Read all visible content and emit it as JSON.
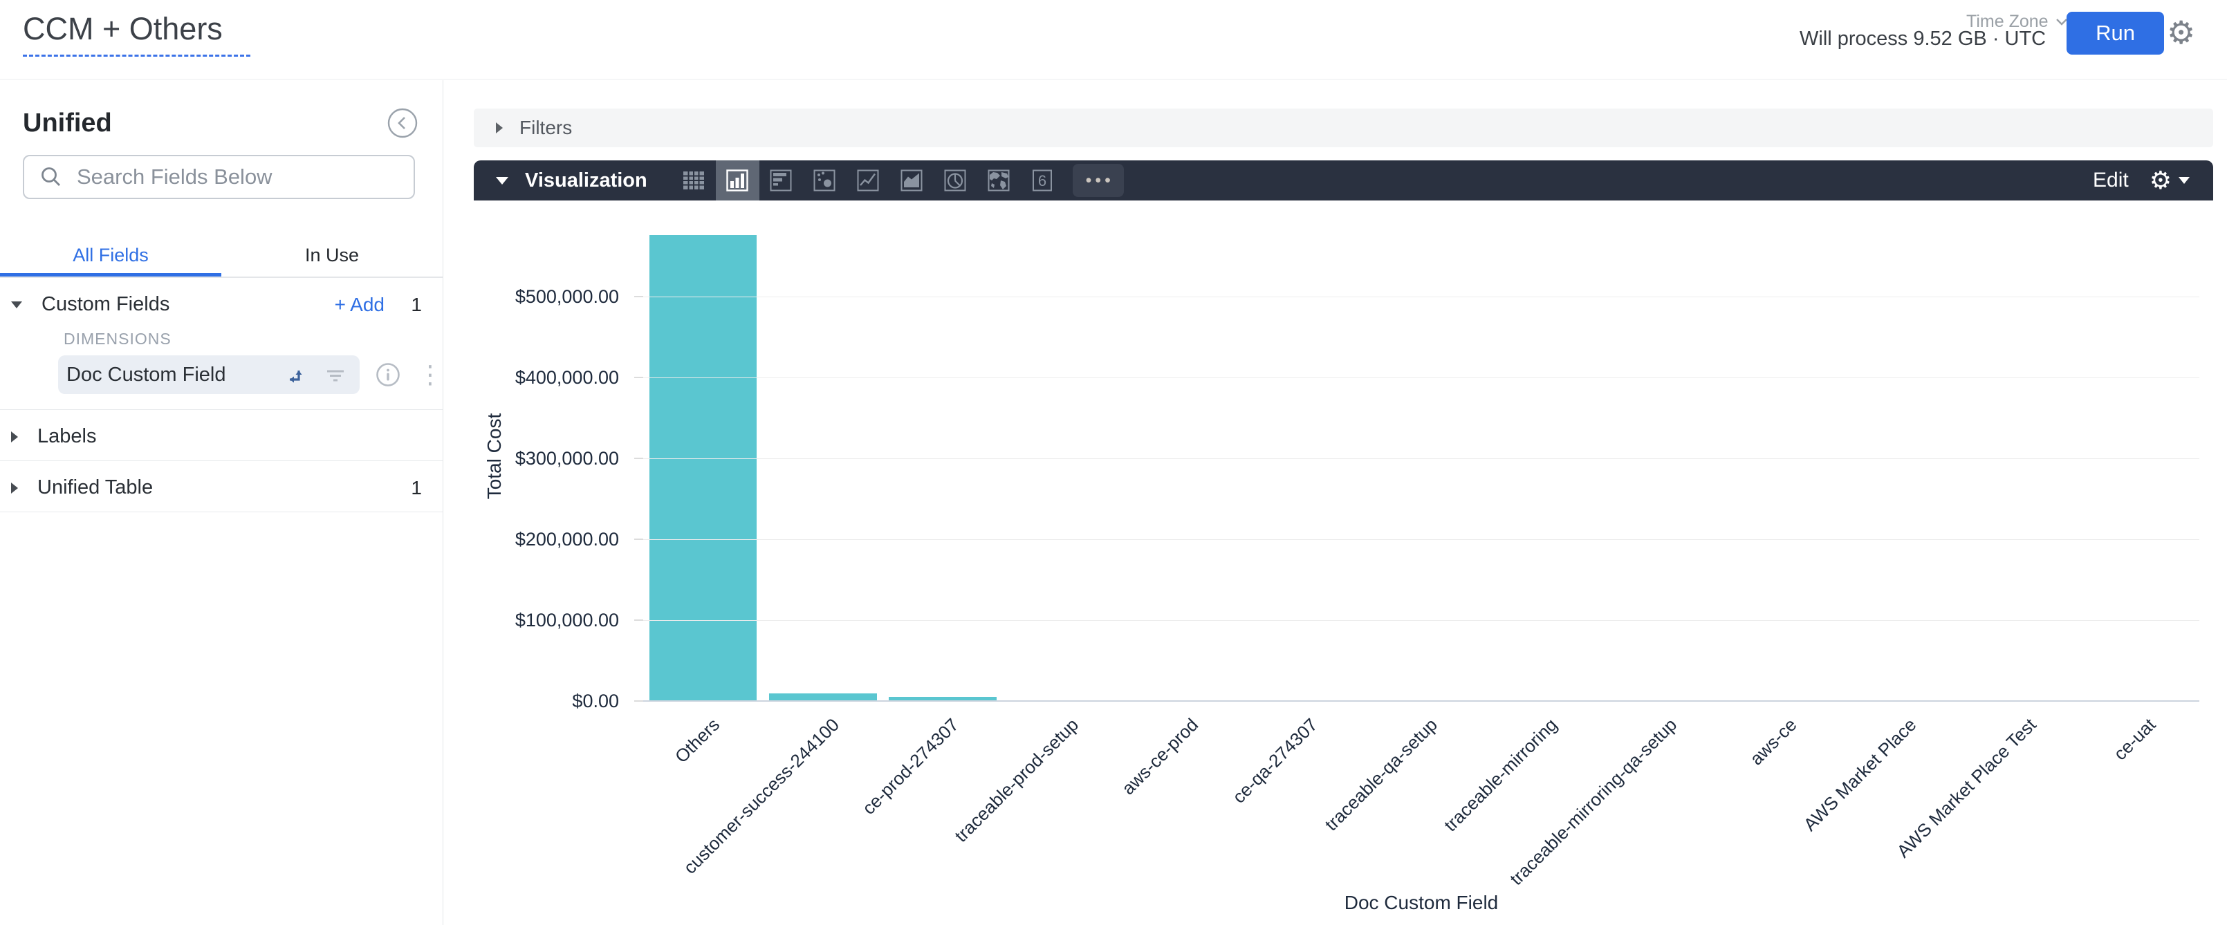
{
  "header": {
    "title": "CCM + Others",
    "process_info": "Will process 9.52 GB · UTC",
    "time_zone_label": "Time Zone",
    "run_label": "Run"
  },
  "sidebar": {
    "panel_title": "Unified",
    "search_placeholder": "Search Fields Below",
    "tabs": [
      {
        "label": "All Fields",
        "active": true
      },
      {
        "label": "In Use",
        "active": false
      }
    ],
    "custom_fields": {
      "label": "Custom Fields",
      "add_label": "+ Add",
      "count": "1",
      "group_label": "DIMENSIONS",
      "fields": [
        {
          "name": "Doc Custom Field",
          "selected": true
        }
      ]
    },
    "sections": [
      {
        "label": "Labels",
        "count": ""
      },
      {
        "label": "Unified Table",
        "count": "1"
      }
    ]
  },
  "filters": {
    "label": "Filters"
  },
  "visualization": {
    "label": "Visualization",
    "edit_label": "Edit",
    "selected": "column",
    "chart_types": [
      "table",
      "column",
      "bar",
      "scatter",
      "line",
      "area",
      "pie",
      "map",
      "single-value"
    ],
    "more_label": "•••"
  },
  "icons": {
    "gear": "⚙",
    "kebab": "⋮"
  },
  "colors": {
    "accent_blue": "#2F6FE4",
    "bar_teal": "#5AC6D0",
    "viz_bar_bg": "#2A3140",
    "grid": "#ECECEC",
    "axis": "#CCD4DE",
    "chart_text": "#1E2A3C"
  },
  "chart_data": {
    "type": "bar",
    "title": "",
    "xlabel": "Doc Custom Field",
    "ylabel": "Total Cost",
    "categories": [
      "Others",
      "customer-success-244100",
      "ce-prod-274307",
      "traceable-prod-setup",
      "aws-ce-prod",
      "ce-qa-274307",
      "traceable-qa-setup",
      "traceable-mirroring",
      "traceable-mirroring-qa-setup",
      "aws-ce",
      "AWS Market Place",
      "AWS Market Place Test",
      "ce-uat"
    ],
    "values": [
      577000,
      10500,
      6000,
      0,
      0,
      0,
      0,
      0,
      0,
      0,
      0,
      0,
      0
    ],
    "y_tick_step": 100000,
    "y_tick_labels": [
      "$0.00",
      "$100,000.00",
      "$200,000.00",
      "$300,000.00",
      "$400,000.00",
      "$500,000.00"
    ],
    "ylim": [
      0,
      611000
    ],
    "grid": true,
    "legend": false
  }
}
